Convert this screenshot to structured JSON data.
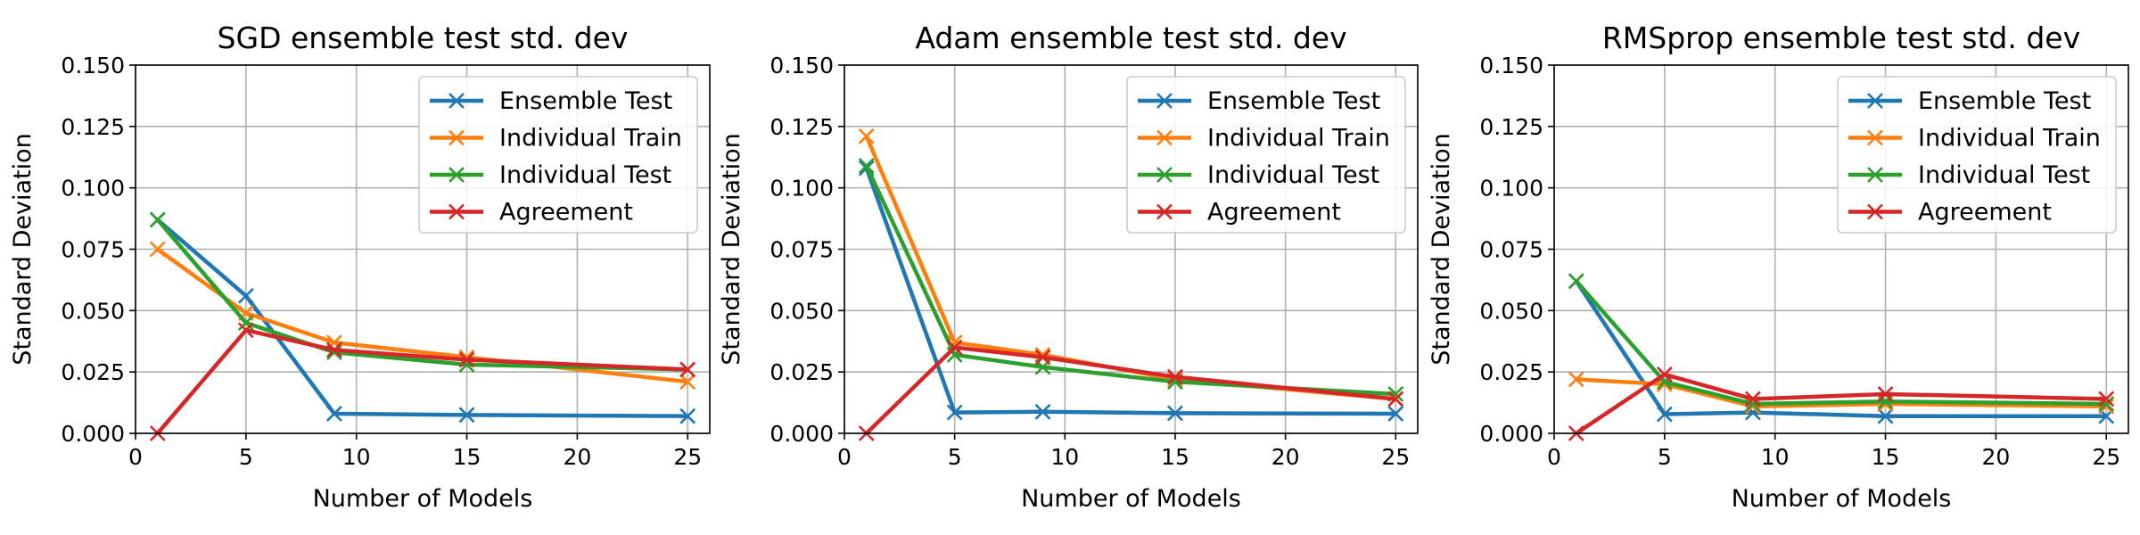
{
  "figure": {
    "description_free": true
  },
  "colors": {
    "Ensemble Test": "#1f77b4",
    "Individual Train": "#ff7f0e",
    "Individual Test": "#2ca02c",
    "Agreement": "#d62728"
  },
  "chart_data": [
    {
      "type": "line",
      "title": "SGD ensemble test std. dev",
      "xlabel": "Number of Models",
      "ylabel": "Standard Deviation",
      "xlim": [
        0,
        26
      ],
      "ylim": [
        0,
        0.15
      ],
      "xticks": [
        0,
        5,
        10,
        15,
        20,
        25
      ],
      "yticks": [
        0.0,
        0.025,
        0.05,
        0.075,
        0.1,
        0.125,
        0.15
      ],
      "ytick_labels": [
        "0.000",
        "0.025",
        "0.050",
        "0.075",
        "0.100",
        "0.125",
        "0.150"
      ],
      "grid": true,
      "legend": "top-right",
      "x": [
        1,
        5,
        9,
        15,
        25
      ],
      "series": [
        {
          "name": "Ensemble Test",
          "values": [
            0.087,
            0.056,
            0.008,
            0.0075,
            0.007
          ]
        },
        {
          "name": "Individual Train",
          "values": [
            0.075,
            0.049,
            0.037,
            0.031,
            0.021
          ]
        },
        {
          "name": "Individual Test",
          "values": [
            0.087,
            0.045,
            0.033,
            0.028,
            0.026
          ]
        },
        {
          "name": "Agreement",
          "values": [
            0.0,
            0.042,
            0.034,
            0.03,
            0.026
          ]
        }
      ]
    },
    {
      "type": "line",
      "title": "Adam ensemble test std. dev",
      "xlabel": "Number of Models",
      "ylabel": "Standard Deviation",
      "xlim": [
        0,
        26
      ],
      "ylim": [
        0,
        0.15
      ],
      "xticks": [
        0,
        5,
        10,
        15,
        20,
        25
      ],
      "yticks": [
        0.0,
        0.025,
        0.05,
        0.075,
        0.1,
        0.125,
        0.15
      ],
      "ytick_labels": [
        "0.000",
        "0.025",
        "0.050",
        "0.075",
        "0.100",
        "0.125",
        "0.150"
      ],
      "grid": true,
      "legend": "top-right",
      "x": [
        1,
        5,
        9,
        15,
        25
      ],
      "series": [
        {
          "name": "Ensemble Test",
          "values": [
            0.108,
            0.0085,
            0.0088,
            0.0082,
            0.008
          ]
        },
        {
          "name": "Individual Train",
          "values": [
            0.121,
            0.037,
            0.032,
            0.022,
            0.014
          ]
        },
        {
          "name": "Individual Test",
          "values": [
            0.109,
            0.032,
            0.027,
            0.021,
            0.016
          ]
        },
        {
          "name": "Agreement",
          "values": [
            0.0,
            0.035,
            0.031,
            0.023,
            0.014
          ]
        }
      ]
    },
    {
      "type": "line",
      "title": "RMSprop ensemble test std. dev",
      "xlabel": "Number of Models",
      "ylabel": "Standard Deviation",
      "xlim": [
        0,
        26
      ],
      "ylim": [
        0,
        0.15
      ],
      "xticks": [
        0,
        5,
        10,
        15,
        20,
        25
      ],
      "yticks": [
        0.0,
        0.025,
        0.05,
        0.075,
        0.1,
        0.125,
        0.15
      ],
      "ytick_labels": [
        "0.000",
        "0.025",
        "0.050",
        "0.075",
        "0.100",
        "0.125",
        "0.150"
      ],
      "grid": true,
      "legend": "top-right",
      "x": [
        1,
        5,
        9,
        15,
        25
      ],
      "series": [
        {
          "name": "Ensemble Test",
          "values": [
            0.062,
            0.0078,
            0.0085,
            0.007,
            0.007
          ]
        },
        {
          "name": "Individual Train",
          "values": [
            0.022,
            0.02,
            0.011,
            0.012,
            0.011
          ]
        },
        {
          "name": "Individual Test",
          "values": [
            0.062,
            0.021,
            0.012,
            0.013,
            0.012
          ]
        },
        {
          "name": "Agreement",
          "values": [
            0.0,
            0.024,
            0.014,
            0.016,
            0.014
          ]
        }
      ]
    }
  ]
}
